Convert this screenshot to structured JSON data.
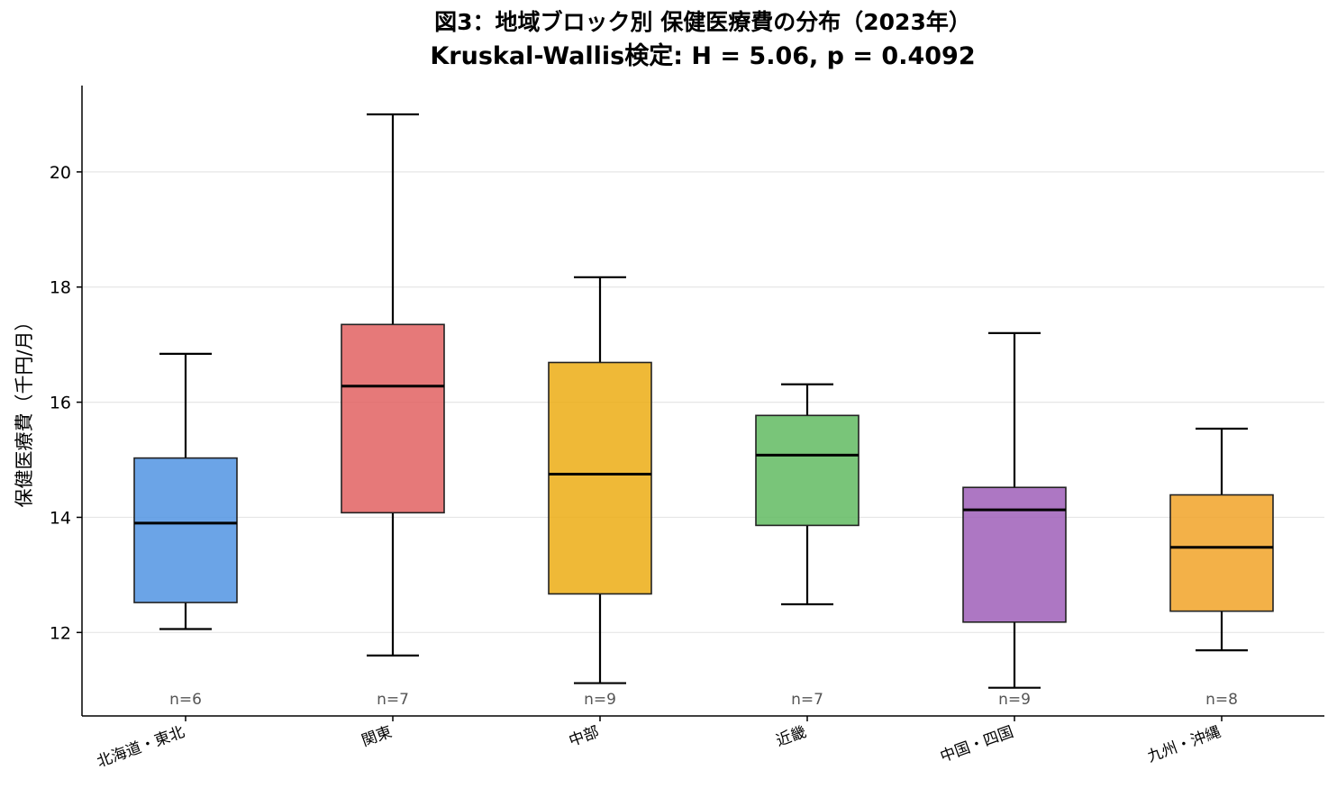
{
  "chart_data": {
    "type": "boxplot",
    "title": "図3：地域ブロック別 保健医療費の分布（2023年）",
    "subtitle": "Kruskal-Wallis検定: H = 5.06,  p = 0.4092",
    "xlabel": "",
    "ylabel": "保健医療費（千円/月）",
    "ylim": [
      10.55,
      21.5
    ],
    "yticks": [
      12,
      14,
      16,
      18,
      20
    ],
    "grid": "y",
    "categories": [
      "北海道・東北",
      "関東",
      "中部",
      "近畿",
      "中国・四国",
      "九州・沖縄"
    ],
    "boxes": [
      {
        "name": "北海道・東北",
        "whisker_low": 12.06,
        "q1": 12.52,
        "median": 13.9,
        "q3": 15.03,
        "whisker_high": 16.84,
        "n_label": "n=6",
        "color": "#4a90e2"
      },
      {
        "name": "関東",
        "whisker_low": 11.6,
        "q1": 14.08,
        "median": 16.28,
        "q3": 17.35,
        "whisker_high": 21.0,
        "n_label": "n=7",
        "color": "#e05c5c"
      },
      {
        "name": "中部",
        "whisker_low": 11.12,
        "q1": 12.67,
        "median": 14.75,
        "q3": 16.69,
        "whisker_high": 18.17,
        "n_label": "n=9",
        "color": "#eba90b"
      },
      {
        "name": "近畿",
        "whisker_low": 12.49,
        "q1": 13.86,
        "median": 15.08,
        "q3": 15.77,
        "whisker_high": 16.31,
        "n_label": "n=7",
        "color": "#5cb85c"
      },
      {
        "name": "中国・四国",
        "whisker_low": 11.04,
        "q1": 12.18,
        "median": 14.13,
        "q3": 14.52,
        "whisker_high": 17.2,
        "n_label": "n=9",
        "color": "#9b59b6"
      },
      {
        "name": "九州・沖縄",
        "whisker_low": 11.69,
        "q1": 12.37,
        "median": 13.48,
        "q3": 14.39,
        "whisker_high": 15.54,
        "n_label": "n=8",
        "color": "#f0a020"
      }
    ]
  }
}
